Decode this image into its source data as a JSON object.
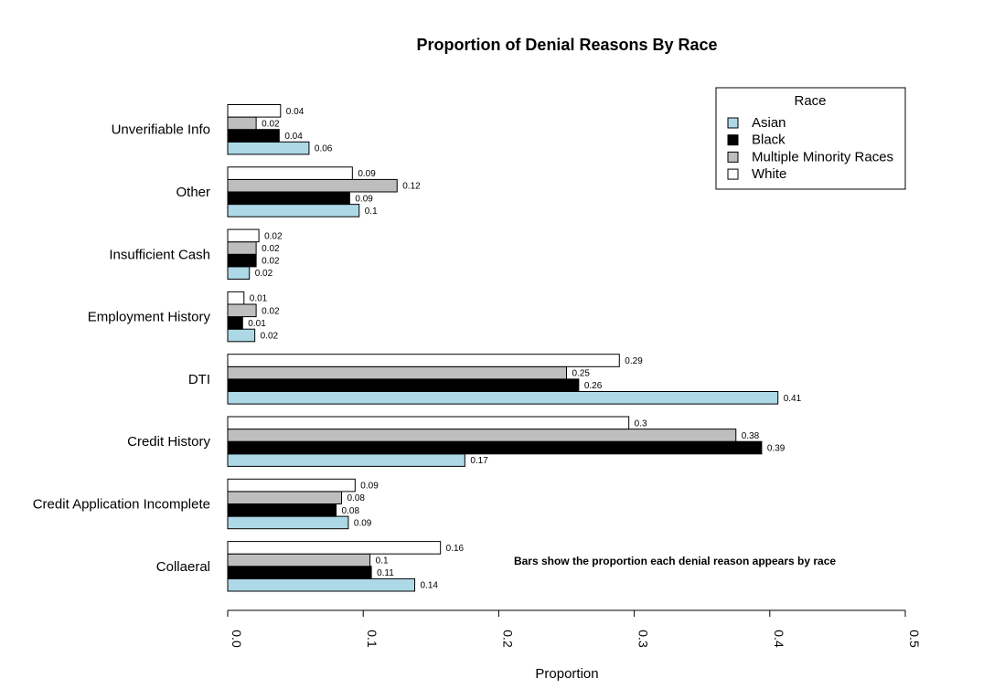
{
  "chart_data": {
    "type": "bar",
    "orientation": "horizontal",
    "title": "Proportion of Denial Reasons By Race",
    "xlabel": "Proportion",
    "ylabel": "",
    "xlim": [
      0,
      0.5
    ],
    "xticks": [
      0.0,
      0.1,
      0.2,
      0.3,
      0.4,
      0.5
    ],
    "xtick_labels": [
      "0.0",
      "0.1",
      "0.2",
      "0.3",
      "0.4",
      "0.5"
    ],
    "grid": false,
    "categories": [
      "Collaeral",
      "Credit Application Incomplete",
      "Credit History",
      "DTI",
      "Employment History",
      "Insufficient Cash",
      "Other",
      "Unverifiable Info"
    ],
    "series": [
      {
        "name": "Asian",
        "color": "#add8e6",
        "values": [
          0.138,
          0.089,
          0.175,
          0.406,
          0.02,
          0.016,
          0.097,
          0.06
        ],
        "labels": [
          "0.14",
          "0.09",
          "0.17",
          "0.41",
          "0.02",
          "0.02",
          "0.1",
          "0.06"
        ]
      },
      {
        "name": "Black",
        "color": "#000000",
        "values": [
          0.106,
          0.08,
          0.394,
          0.259,
          0.011,
          0.021,
          0.09,
          0.038
        ],
        "labels": [
          "0.11",
          "0.08",
          "0.39",
          "0.26",
          "0.01",
          "0.02",
          "0.09",
          "0.04"
        ]
      },
      {
        "name": "Multiple Minority Races",
        "color": "#bebebe",
        "values": [
          0.105,
          0.084,
          0.375,
          0.25,
          0.021,
          0.021,
          0.125,
          0.021
        ],
        "labels": [
          "0.1",
          "0.08",
          "0.38",
          "0.25",
          "0.02",
          "0.02",
          "0.12",
          "0.02"
        ]
      },
      {
        "name": "White",
        "color": "#ffffff",
        "values": [
          0.157,
          0.094,
          0.296,
          0.289,
          0.012,
          0.023,
          0.092,
          0.039
        ],
        "labels": [
          "0.16",
          "0.09",
          "0.3",
          "0.29",
          "0.01",
          "0.02",
          "0.09",
          "0.04"
        ]
      }
    ],
    "legend": {
      "title": "Race",
      "position": "top-right"
    },
    "annotation": "Bars show the proportion each denial reason appears by race"
  }
}
